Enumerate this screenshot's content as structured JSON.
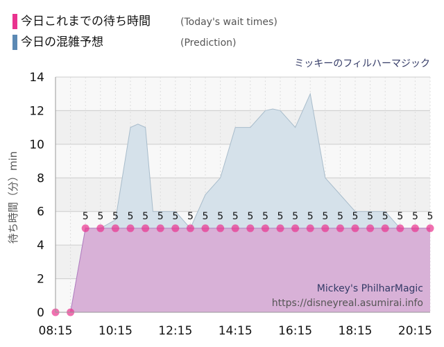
{
  "legend": {
    "items": [
      {
        "label": "今日これまでの待ち時間",
        "sub": "(Today's wait times)",
        "color": "#e9338f"
      },
      {
        "label": "今日の混雑予想",
        "sub": "(Prediction)",
        "color": "#5b89b4"
      }
    ]
  },
  "attraction_title": "ミッキーのフィルハーマジック",
  "watermark": {
    "name_en": "Mickey's PhilharMagic",
    "url": "https://disneyreal.asumirai.info"
  },
  "colors": {
    "actual_line": "#e9338f",
    "actual_fill": "#d8a8d3",
    "prediction_fill": "#d5e1ea",
    "prediction_line": "#a8bccb",
    "grid": "#cccccc",
    "plot_bg": "#f8f8f8"
  },
  "chart_data": {
    "type": "area",
    "xlabel": "",
    "ylabel": "待ち時間（分）min",
    "ylim": [
      0,
      14
    ],
    "yticks": [
      0,
      2,
      4,
      6,
      8,
      10,
      12,
      14
    ],
    "xlim": [
      "08:15",
      "20:45"
    ],
    "xticks": [
      "08:15",
      "10:15",
      "12:15",
      "14:15",
      "16:15",
      "18:15",
      "20:15"
    ],
    "grid": true,
    "series": [
      {
        "name": "今日の混雑予想",
        "x": [
          "08:15",
          "08:45",
          "09:15",
          "09:45",
          "10:15",
          "10:45",
          "11:00",
          "11:15",
          "11:30",
          "11:45",
          "12:15",
          "12:45",
          "13:15",
          "13:45",
          "14:15",
          "14:30",
          "14:45",
          "15:15",
          "15:30",
          "15:45",
          "16:15",
          "16:45",
          "17:15",
          "17:45",
          "18:15",
          "18:45",
          "19:15",
          "19:45",
          "20:15",
          "20:45"
        ],
        "values": [
          0,
          0,
          5,
          5,
          5.5,
          11,
          11.2,
          11,
          6,
          6,
          6,
          5,
          7,
          8,
          11,
          11,
          11,
          12,
          12.1,
          12,
          11,
          13,
          8,
          7,
          6,
          6,
          6,
          5,
          5,
          5
        ]
      },
      {
        "name": "今日これまでの待ち時間",
        "x": [
          "08:15",
          "08:45",
          "09:15",
          "09:45",
          "10:15",
          "10:45",
          "11:15",
          "11:45",
          "12:15",
          "12:45",
          "13:15",
          "13:45",
          "14:15",
          "14:45",
          "15:15",
          "15:45",
          "16:15",
          "16:45",
          "17:15",
          "17:45",
          "18:15",
          "18:45",
          "19:15",
          "19:45",
          "20:15",
          "20:45"
        ],
        "values": [
          0,
          0,
          5,
          5,
          5,
          5,
          5,
          5,
          5,
          5,
          5,
          5,
          5,
          5,
          5,
          5,
          5,
          5,
          5,
          5,
          5,
          5,
          5,
          5,
          5,
          5
        ],
        "labels": [
          "",
          "",
          "5",
          "5",
          "5",
          "5",
          "5",
          "5",
          "5",
          "5",
          "5",
          "5",
          "5",
          "5",
          "5",
          "5",
          "5",
          "5",
          "5",
          "5",
          "5",
          "5",
          "5",
          "5",
          "5",
          "5"
        ]
      }
    ]
  }
}
